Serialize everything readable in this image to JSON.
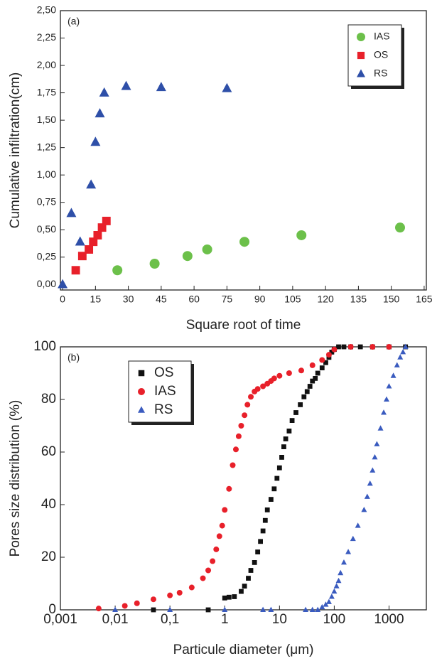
{
  "chart_data": [
    {
      "type": "scatter",
      "annotation": "(a)",
      "x_label": "Square root of time",
      "y_label": "Cumulative infiltration(cm)",
      "xlim": [
        -1,
        166
      ],
      "ylim": [
        -0.05,
        2.5
      ],
      "xscale": "linear",
      "xticks": [
        0,
        15,
        30,
        45,
        60,
        75,
        90,
        105,
        120,
        135,
        150,
        165
      ],
      "yticks": [
        {
          "value": 0,
          "label": "0,00"
        },
        {
          "value": 0.25,
          "label": "0,25"
        },
        {
          "value": 0.5,
          "label": "0,50"
        },
        {
          "value": 0.75,
          "label": "0,75"
        },
        {
          "value": 1,
          "label": "1,00"
        },
        {
          "value": 1.25,
          "label": "1,25"
        },
        {
          "value": 1.5,
          "label": "1,50"
        },
        {
          "value": 1.75,
          "label": "1,75"
        },
        {
          "value": 2,
          "label": "2,00"
        },
        {
          "value": 2.25,
          "label": "2,25"
        },
        {
          "value": 2.5,
          "label": "2,50"
        }
      ],
      "legend": "upper right",
      "series": [
        {
          "name": "IAS",
          "color": "#6cc04a",
          "marker": "circle",
          "x": [
            25,
            42,
            57,
            66,
            83,
            109,
            154
          ],
          "values": [
            0.13,
            0.19,
            0.26,
            0.32,
            0.39,
            0.45,
            0.52
          ]
        },
        {
          "name": "OS",
          "color": "#e8202a",
          "marker": "square",
          "x": [
            6,
            9,
            12,
            14,
            16,
            18,
            20
          ],
          "values": [
            0.13,
            0.26,
            0.32,
            0.39,
            0.45,
            0.52,
            0.58
          ]
        },
        {
          "name": "RS",
          "color": "#2e4fa8",
          "marker": "triangle",
          "x": [
            0,
            4,
            8,
            13,
            15,
            17,
            19,
            29,
            45,
            75
          ],
          "values": [
            0,
            0.65,
            0.39,
            0.91,
            1.3,
            1.56,
            1.75,
            1.81,
            1.8,
            1.79
          ]
        }
      ]
    },
    {
      "type": "scatter",
      "annotation": "(b)",
      "x_label": "Particule diameter (μm)",
      "y_label": "Pores size distribution (%)",
      "xlim": [
        0.001,
        4800
      ],
      "ylim": [
        0,
        100
      ],
      "xscale": "log",
      "xticks": [
        {
          "value": 0.001,
          "label": "0,001"
        },
        {
          "value": 0.01,
          "label": "0,01"
        },
        {
          "value": 0.1,
          "label": "0,1"
        },
        1,
        10,
        100,
        1000
      ],
      "yticks": [
        0,
        20,
        40,
        60,
        80,
        100
      ],
      "legend": "upper left",
      "series": [
        {
          "name": "OS",
          "color": "#111111",
          "marker": "square",
          "x": [
            0.05,
            0.5,
            1,
            1.2,
            1.5,
            2,
            2.3,
            2.7,
            3,
            3.5,
            4,
            4.5,
            5,
            5.5,
            6,
            7,
            8,
            9,
            10,
            11,
            12,
            13,
            15,
            17,
            20,
            24,
            28,
            32,
            36,
            40,
            45,
            50,
            60,
            70,
            80,
            90,
            100,
            120,
            150,
            200,
            300,
            500,
            1000,
            2000
          ],
          "values": [
            0,
            0,
            4.5,
            4.8,
            5,
            7,
            9,
            12,
            15,
            18,
            22,
            26,
            30,
            34,
            38,
            42,
            46,
            50,
            54,
            58,
            62,
            65,
            68,
            72,
            75,
            78,
            81,
            83,
            85,
            87,
            88,
            90,
            92,
            94,
            96,
            98,
            99,
            100,
            100,
            100,
            100,
            100,
            100,
            100
          ]
        },
        {
          "name": "IAS",
          "color": "#e8202a",
          "marker": "circle",
          "x": [
            0.005,
            0.015,
            0.025,
            0.05,
            0.1,
            0.15,
            0.25,
            0.4,
            0.5,
            0.6,
            0.7,
            0.8,
            0.9,
            1,
            1.2,
            1.4,
            1.6,
            1.8,
            2,
            2.3,
            2.6,
            3,
            3.5,
            4,
            5,
            6,
            7,
            8,
            10,
            15,
            25,
            40,
            60,
            80,
            100,
            200,
            500,
            1000
          ],
          "values": [
            0.5,
            1.5,
            2.5,
            4,
            5.5,
            6.5,
            8.5,
            12,
            15,
            18.5,
            23,
            28,
            32,
            38,
            46,
            55,
            61,
            66,
            70,
            74,
            78,
            81,
            83,
            84,
            85,
            86,
            87,
            88,
            89,
            90,
            91,
            93,
            95,
            97,
            99,
            100,
            100,
            100
          ]
        },
        {
          "name": "RS",
          "color": "#3a5bbf",
          "marker": "triangle",
          "x": [
            0.01,
            0.1,
            1,
            5,
            7,
            30,
            40,
            50,
            60,
            70,
            80,
            90,
            100,
            110,
            120,
            130,
            150,
            180,
            220,
            270,
            350,
            400,
            450,
            500,
            550,
            600,
            700,
            800,
            900,
            1000,
            1200,
            1400,
            1600,
            1800,
            2000
          ],
          "values": [
            0,
            0,
            0,
            0,
            0,
            0,
            0,
            0,
            1,
            2,
            3,
            5,
            7,
            9,
            11,
            14,
            18,
            22,
            27,
            32,
            38,
            43,
            48,
            53,
            58,
            63,
            69,
            75,
            80,
            85,
            89,
            93,
            96,
            98,
            100
          ]
        }
      ]
    }
  ]
}
